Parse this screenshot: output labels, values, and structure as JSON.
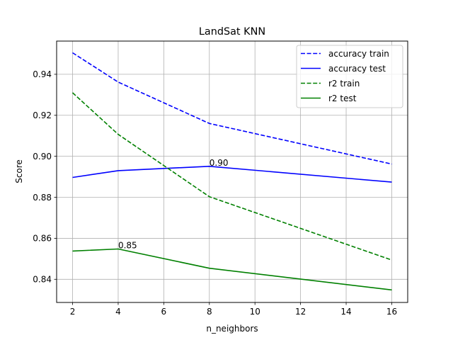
{
  "chart_data": {
    "type": "line",
    "title": "LandSat KNN",
    "xlabel": "n_neighbors",
    "ylabel": "Score",
    "xlim": [
      1.3,
      16.7
    ],
    "ylim": [
      0.8287,
      0.9562
    ],
    "xticks": [
      2,
      4,
      6,
      8,
      10,
      12,
      14,
      16
    ],
    "yticks": [
      0.84,
      0.86,
      0.88,
      0.9,
      0.92,
      0.94
    ],
    "ytick_labels": [
      "0.84",
      "0.86",
      "0.88",
      "0.90",
      "0.92",
      "0.94"
    ],
    "grid": true,
    "legend_position": "top-right",
    "series": [
      {
        "name": "accuracy train",
        "color": "#0000ff",
        "style": "dashed",
        "x": [
          2,
          4,
          8,
          16
        ],
        "values": [
          0.9505,
          0.9362,
          0.916,
          0.8962
        ]
      },
      {
        "name": "accuracy test",
        "color": "#0000ff",
        "style": "solid",
        "x": [
          2,
          4,
          8,
          16
        ],
        "values": [
          0.8897,
          0.893,
          0.8951,
          0.8874
        ]
      },
      {
        "name": "r2 train",
        "color": "#008000",
        "style": "dashed",
        "x": [
          2,
          4,
          8,
          16
        ],
        "values": [
          0.931,
          0.9107,
          0.8803,
          0.8494
        ]
      },
      {
        "name": "r2 test",
        "color": "#008000",
        "style": "solid",
        "x": [
          2,
          4,
          8,
          16
        ],
        "values": [
          0.8538,
          0.8548,
          0.8454,
          0.8348
        ]
      }
    ],
    "annotations": [
      {
        "text": "0.90",
        "x": 8,
        "y": 0.8951
      },
      {
        "text": "0.85",
        "x": 4,
        "y": 0.8548
      }
    ]
  }
}
